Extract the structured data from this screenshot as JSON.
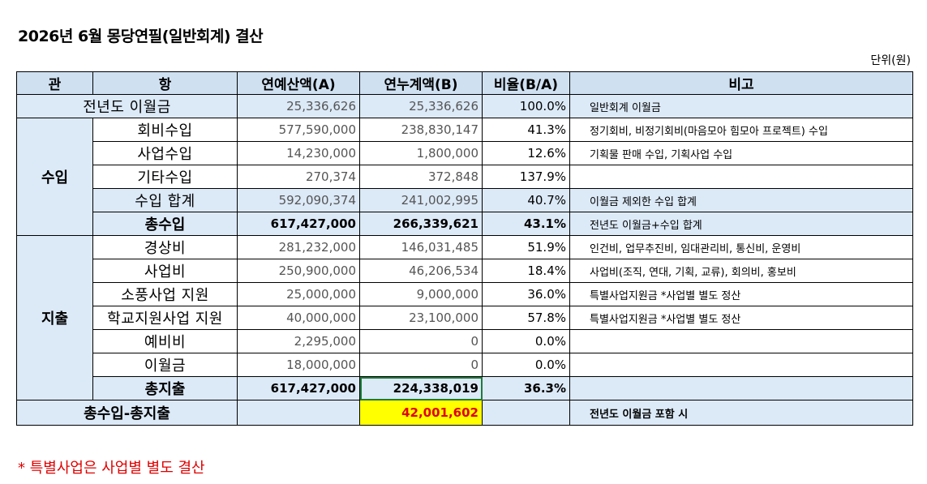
{
  "title": "2026년 6월 몽당연필(일반회계) 결산",
  "unit": "단위(원)",
  "headers": {
    "gwan": "관",
    "hang": "항",
    "budget": "연예산액(A)",
    "actual": "연누계액(B)",
    "ratio": "비율(B/A)",
    "note": "비고"
  },
  "carryover": {
    "label": "전년도 이월금",
    "budget": "25,336,626",
    "actual": "25,336,626",
    "ratio": "100.0%",
    "note": "일반회계 이월금"
  },
  "income": {
    "section": "수입",
    "rows": [
      {
        "label": "회비수입",
        "budget": "577,590,000",
        "actual": "238,830,147",
        "ratio": "41.3%",
        "note": "정기회비, 비정기회비(마음모아 힘모아 프로젝트) 수입"
      },
      {
        "label": "사업수입",
        "budget": "14,230,000",
        "actual": "1,800,000",
        "ratio": "12.6%",
        "note": "기획물 판매 수입, 기획사업 수입"
      },
      {
        "label": "기타수입",
        "budget": "270,374",
        "actual": "372,848",
        "ratio": "137.9%",
        "note": ""
      },
      {
        "label": "수입 합계",
        "budget": "592,090,374",
        "actual": "241,002,995",
        "ratio": "40.7%",
        "note": "이월금 제외한 수입 합계"
      }
    ],
    "total": {
      "label": "총수입",
      "budget": "617,427,000",
      "actual": "266,339,621",
      "ratio": "43.1%",
      "note": "전년도 이월금+수입 합계"
    }
  },
  "expense": {
    "section": "지출",
    "rows": [
      {
        "label": "경상비",
        "budget": "281,232,000",
        "actual": "146,031,485",
        "ratio": "51.9%",
        "note": "인건비, 업무추진비, 임대관리비, 통신비, 운영비"
      },
      {
        "label": "사업비",
        "budget": "250,900,000",
        "actual": "46,206,534",
        "ratio": "18.4%",
        "note": "사업비(조직, 연대, 기획, 교류), 회의비, 홍보비"
      },
      {
        "label": "소풍사업 지원",
        "budget": "25,000,000",
        "actual": "9,000,000",
        "ratio": "36.0%",
        "note": "특별사업지원금 *사업별 별도 정산"
      },
      {
        "label": "학교지원사업 지원",
        "budget": "40,000,000",
        "actual": "23,100,000",
        "ratio": "57.8%",
        "note": "특별사업지원금 *사업별 별도 정산"
      },
      {
        "label": "예비비",
        "budget": "2,295,000",
        "actual": "0",
        "ratio": "0.0%",
        "note": ""
      },
      {
        "label": "이월금",
        "budget": "18,000,000",
        "actual": "0",
        "ratio": "0.0%",
        "note": ""
      }
    ],
    "total": {
      "label": "총지출",
      "budget": "617,427,000",
      "actual": "224,338,019",
      "ratio": "36.3%",
      "note": ""
    }
  },
  "balance": {
    "label": "총수입-총지출",
    "actual": "42,001,602",
    "note": "전년도 이월금 포함 시"
  },
  "footnote": "* 특별사업은 사업별 별도 결산",
  "colors": {
    "header_bg": "#cfe0f1",
    "row_blue": "#dce9f7",
    "highlight": "#ffff00",
    "red_text": "#e00000"
  }
}
